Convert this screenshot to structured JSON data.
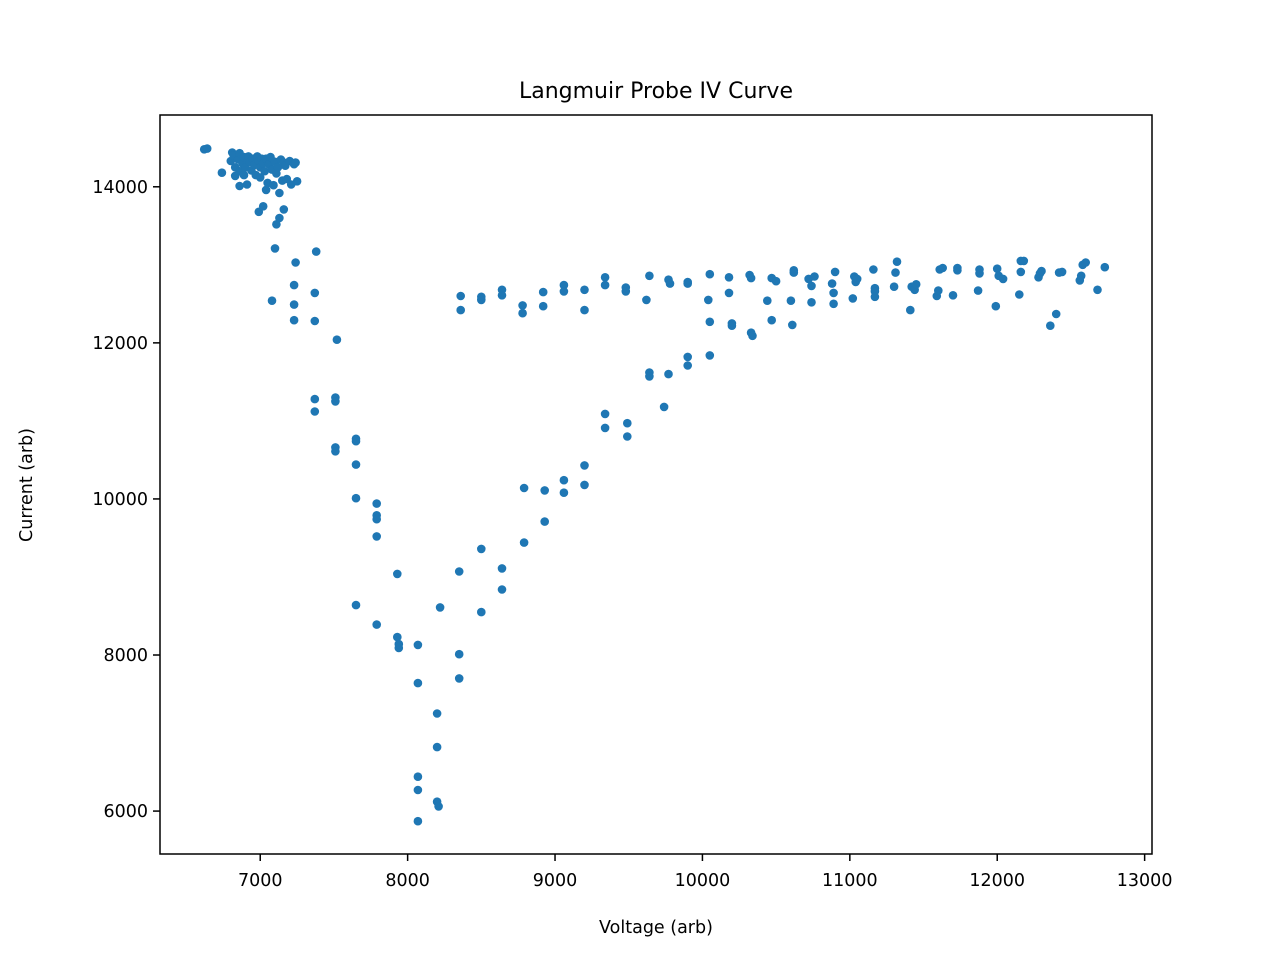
{
  "chart_data": {
    "type": "scatter",
    "title": "Langmuir Probe IV Curve",
    "xlabel": "Voltage (arb)",
    "ylabel": "Current (arb)",
    "xlim": [
      6320,
      13050
    ],
    "ylim": [
      5450,
      14920
    ],
    "x_ticks": [
      7000,
      8000,
      9000,
      10000,
      11000,
      12000,
      13000
    ],
    "x_tick_labels": [
      "7000",
      "8000",
      "9000",
      "10000",
      "11000",
      "12000",
      "13000"
    ],
    "y_ticks": [
      6000,
      8000,
      10000,
      12000,
      14000
    ],
    "y_tick_labels": [
      "6000",
      "8000",
      "10000",
      "12000",
      "14000"
    ],
    "grid": false,
    "legend": "none",
    "marker_color": "#1f77b4",
    "series": [
      {
        "points": [
          [
            6620,
            14480
          ],
          [
            6640,
            14490
          ],
          [
            6740,
            14180
          ],
          [
            6800,
            14330
          ],
          [
            6810,
            14440
          ],
          [
            6820,
            14400
          ],
          [
            6830,
            14250
          ],
          [
            6830,
            14140
          ],
          [
            6850,
            14350
          ],
          [
            6860,
            14430
          ],
          [
            6860,
            14200
          ],
          [
            6860,
            14010
          ],
          [
            6880,
            14300
          ],
          [
            6890,
            14380
          ],
          [
            6890,
            14150
          ],
          [
            6900,
            14250
          ],
          [
            6910,
            14030
          ],
          [
            6920,
            14390
          ],
          [
            6930,
            14320
          ],
          [
            6940,
            14210
          ],
          [
            6950,
            14360
          ],
          [
            6960,
            14280
          ],
          [
            6970,
            14150
          ],
          [
            6980,
            14390
          ],
          [
            6990,
            14330
          ],
          [
            7000,
            14250
          ],
          [
            7000,
            14120
          ],
          [
            7010,
            14360
          ],
          [
            7020,
            14300
          ],
          [
            7030,
            14200
          ],
          [
            7040,
            14360
          ],
          [
            7040,
            13960
          ],
          [
            7050,
            14050
          ],
          [
            7060,
            14290
          ],
          [
            7070,
            14380
          ],
          [
            7080,
            14220
          ],
          [
            7090,
            14020
          ],
          [
            7100,
            14320
          ],
          [
            7110,
            14170
          ],
          [
            7120,
            14250
          ],
          [
            7130,
            13920
          ],
          [
            7140,
            14350
          ],
          [
            7150,
            14080
          ],
          [
            7160,
            14310
          ],
          [
            7170,
            14270
          ],
          [
            7180,
            14100
          ],
          [
            7200,
            14330
          ],
          [
            7210,
            14030
          ],
          [
            7230,
            14290
          ],
          [
            7240,
            14310
          ],
          [
            7250,
            14070
          ],
          [
            6990,
            13680
          ],
          [
            7020,
            13750
          ],
          [
            7110,
            13520
          ],
          [
            7130,
            13600
          ],
          [
            7160,
            13710
          ],
          [
            7100,
            13210
          ],
          [
            7240,
            13030
          ],
          [
            7380,
            13170
          ],
          [
            7080,
            12540
          ],
          [
            7230,
            12740
          ],
          [
            7230,
            12490
          ],
          [
            7230,
            12290
          ],
          [
            7370,
            12640
          ],
          [
            7370,
            12280
          ],
          [
            7520,
            12040
          ],
          [
            7370,
            11280
          ],
          [
            7370,
            11120
          ],
          [
            7510,
            11300
          ],
          [
            7510,
            11250
          ],
          [
            7510,
            10660
          ],
          [
            7510,
            10610
          ],
          [
            7650,
            10770
          ],
          [
            7650,
            10740
          ],
          [
            7650,
            10440
          ],
          [
            7650,
            10010
          ],
          [
            7790,
            9940
          ],
          [
            7790,
            9790
          ],
          [
            7790,
            9740
          ],
          [
            7790,
            9520
          ],
          [
            7930,
            9040
          ],
          [
            7650,
            8640
          ],
          [
            7790,
            8390
          ],
          [
            7930,
            8230
          ],
          [
            7940,
            8090
          ],
          [
            7940,
            8140
          ],
          [
            8070,
            8130
          ],
          [
            8070,
            7640
          ],
          [
            8200,
            7250
          ],
          [
            8200,
            6820
          ],
          [
            8070,
            6440
          ],
          [
            8070,
            6270
          ],
          [
            8200,
            6120
          ],
          [
            8210,
            6060
          ],
          [
            8070,
            5870
          ],
          [
            8220,
            8610
          ],
          [
            8350,
            8010
          ],
          [
            8350,
            7700
          ],
          [
            8350,
            9070
          ],
          [
            8500,
            9360
          ],
          [
            8500,
            8550
          ],
          [
            8640,
            9110
          ],
          [
            8640,
            8840
          ],
          [
            8790,
            9440
          ],
          [
            8790,
            10140
          ],
          [
            8930,
            10110
          ],
          [
            8930,
            9710
          ],
          [
            9060,
            10240
          ],
          [
            9060,
            10080
          ],
          [
            9200,
            10430
          ],
          [
            9200,
            10180
          ],
          [
            9340,
            11090
          ],
          [
            9340,
            10910
          ],
          [
            9490,
            10970
          ],
          [
            9490,
            10800
          ],
          [
            9640,
            11620
          ],
          [
            9640,
            11570
          ],
          [
            9740,
            11180
          ],
          [
            9770,
            11600
          ],
          [
            9900,
            11820
          ],
          [
            9900,
            11710
          ],
          [
            10050,
            11840
          ],
          [
            10050,
            12270
          ],
          [
            10200,
            12250
          ],
          [
            10200,
            12220
          ],
          [
            10330,
            12130
          ],
          [
            10340,
            12090
          ],
          [
            10470,
            12290
          ],
          [
            10610,
            12230
          ],
          [
            8360,
            12600
          ],
          [
            8360,
            12420
          ],
          [
            8500,
            12590
          ],
          [
            8500,
            12550
          ],
          [
            8640,
            12680
          ],
          [
            8640,
            12610
          ],
          [
            8780,
            12480
          ],
          [
            8780,
            12380
          ],
          [
            8920,
            12650
          ],
          [
            8920,
            12470
          ],
          [
            9060,
            12740
          ],
          [
            9060,
            12660
          ],
          [
            9200,
            12680
          ],
          [
            9200,
            12420
          ],
          [
            9340,
            12840
          ],
          [
            9340,
            12740
          ],
          [
            9480,
            12710
          ],
          [
            9480,
            12660
          ],
          [
            9620,
            12550
          ],
          [
            9640,
            12860
          ],
          [
            9770,
            12810
          ],
          [
            9780,
            12760
          ],
          [
            9900,
            12780
          ],
          [
            9900,
            12760
          ],
          [
            10040,
            12550
          ],
          [
            10050,
            12880
          ],
          [
            10180,
            12840
          ],
          [
            10180,
            12640
          ],
          [
            10320,
            12870
          ],
          [
            10330,
            12830
          ],
          [
            10440,
            12540
          ],
          [
            10470,
            12830
          ],
          [
            10500,
            12790
          ],
          [
            10600,
            12540
          ],
          [
            10620,
            12930
          ],
          [
            10620,
            12900
          ],
          [
            10720,
            12820
          ],
          [
            10740,
            12730
          ],
          [
            10740,
            12520
          ],
          [
            10760,
            12850
          ],
          [
            10880,
            12760
          ],
          [
            10890,
            12640
          ],
          [
            10890,
            12500
          ],
          [
            10900,
            12910
          ],
          [
            11020,
            12570
          ],
          [
            11030,
            12850
          ],
          [
            11040,
            12780
          ],
          [
            11050,
            12820
          ],
          [
            11160,
            12940
          ],
          [
            11170,
            12700
          ],
          [
            11170,
            12660
          ],
          [
            11170,
            12590
          ],
          [
            11300,
            12720
          ],
          [
            11310,
            12900
          ],
          [
            11320,
            13040
          ],
          [
            11410,
            12420
          ],
          [
            11420,
            12720
          ],
          [
            11440,
            12680
          ],
          [
            11450,
            12750
          ],
          [
            11590,
            12600
          ],
          [
            11600,
            12670
          ],
          [
            11610,
            12940
          ],
          [
            11630,
            12960
          ],
          [
            11700,
            12610
          ],
          [
            11730,
            12930
          ],
          [
            11730,
            12960
          ],
          [
            11870,
            12670
          ],
          [
            11880,
            12940
          ],
          [
            11880,
            12890
          ],
          [
            11990,
            12470
          ],
          [
            12000,
            12950
          ],
          [
            12010,
            12860
          ],
          [
            12040,
            12820
          ],
          [
            12150,
            12620
          ],
          [
            12160,
            12910
          ],
          [
            12160,
            13050
          ],
          [
            12180,
            13050
          ],
          [
            12280,
            12840
          ],
          [
            12290,
            12890
          ],
          [
            12300,
            12920
          ],
          [
            12360,
            12220
          ],
          [
            12400,
            12370
          ],
          [
            12420,
            12900
          ],
          [
            12440,
            12910
          ],
          [
            12560,
            12800
          ],
          [
            12570,
            12860
          ],
          [
            12580,
            13000
          ],
          [
            12600,
            13030
          ],
          [
            12680,
            12680
          ],
          [
            12730,
            12970
          ]
        ]
      }
    ]
  }
}
